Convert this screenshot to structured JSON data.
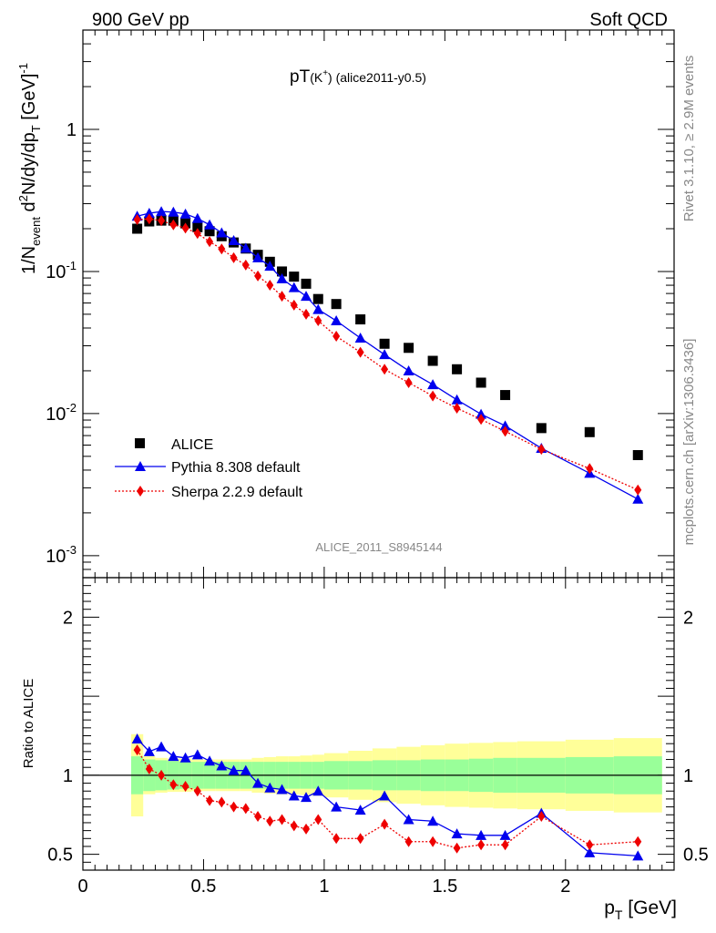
{
  "header": {
    "left": "900 GeV pp",
    "right": "Soft QCD"
  },
  "title": {
    "main": "pT",
    "paren": "(K",
    "sup": "+",
    "rest": ") (alice2011-y0.5)"
  },
  "side_text": {
    "rivet": "Rivet 3.1.10, ≥ 2.9M events",
    "mcplots": "mcplots.cern.ch [arXiv:1306.3436]"
  },
  "watermark": "ALICE_2011_S8945144",
  "colors": {
    "alice": "#000000",
    "pythia": "#0000ee",
    "sherpa": "#ee0000",
    "band_inner": "#99ff99",
    "band_outer": "#ffff99"
  },
  "chart_data": [
    {
      "type": "scatter",
      "panel": "main",
      "ylabel": {
        "a": "1/N",
        "a_sub": "event",
        "b": " d",
        "b_sup": "2",
        "c": "N/dy/dp",
        "c_sub": "T",
        "d": " [GeV]",
        "d_sup": "-1"
      },
      "yscale": "log",
      "ylim": [
        0.0007,
        5
      ],
      "xlim": [
        0,
        2.45
      ],
      "yticks": [
        {
          "v": 0.001,
          "base": "10",
          "exp": "-3"
        },
        {
          "v": 0.01,
          "base": "10",
          "exp": "-2"
        },
        {
          "v": 0.1,
          "base": "10",
          "exp": "-1"
        },
        {
          "v": 1,
          "base": "1",
          "exp": ""
        }
      ],
      "x": [
        0.225,
        0.275,
        0.325,
        0.375,
        0.425,
        0.475,
        0.525,
        0.575,
        0.625,
        0.675,
        0.725,
        0.775,
        0.825,
        0.875,
        0.925,
        0.975,
        1.05,
        1.15,
        1.25,
        1.35,
        1.45,
        1.55,
        1.65,
        1.75,
        1.9,
        2.1,
        2.3
      ],
      "series": [
        {
          "name": "ALICE",
          "marker": "square",
          "values": [
            0.2,
            0.225,
            0.228,
            0.228,
            0.218,
            0.205,
            0.192,
            0.177,
            0.16,
            0.145,
            0.131,
            0.117,
            0.1,
            0.092,
            0.082,
            0.064,
            0.059,
            0.046,
            0.031,
            0.029,
            0.0235,
            0.0205,
            0.0165,
            0.0135,
            0.0079,
            0.0074,
            0.0051
          ]
        },
        {
          "name": "Pythia 8.308 default",
          "marker": "triangle",
          "line": "solid",
          "values": [
            0.245,
            0.257,
            0.264,
            0.262,
            0.254,
            0.236,
            0.213,
            0.187,
            0.165,
            0.146,
            0.125,
            0.109,
            0.089,
            0.077,
            0.067,
            0.054,
            0.045,
            0.034,
            0.026,
            0.02,
            0.016,
            0.0125,
            0.0099,
            0.0082,
            0.0057,
            0.0038,
            0.0025
          ]
        },
        {
          "name": "Sherpa 2.2.9 default",
          "marker": "diamond",
          "line": "dotted",
          "values": [
            0.232,
            0.234,
            0.228,
            0.213,
            0.202,
            0.185,
            0.162,
            0.144,
            0.125,
            0.111,
            0.093,
            0.08,
            0.067,
            0.058,
            0.05,
            0.045,
            0.035,
            0.027,
            0.0205,
            0.0165,
            0.0133,
            0.0109,
            0.0091,
            0.0075,
            0.0056,
            0.0041,
            0.0029
          ]
        }
      ],
      "legend": {
        "position": "bottom-left"
      }
    },
    {
      "type": "line",
      "panel": "ratio",
      "xlabel": {
        "a": "p",
        "a_sub": "T",
        "b": " [GeV]"
      },
      "ylabel": "Ratio to ALICE",
      "ylim": [
        0.4,
        2.25
      ],
      "xlim": [
        0,
        2.45
      ],
      "xticks": [
        {
          "v": 0,
          "label": "0"
        },
        {
          "v": 0.5,
          "label": "0.5"
        },
        {
          "v": 1,
          "label": "1"
        },
        {
          "v": 1.5,
          "label": "1.5"
        },
        {
          "v": 2,
          "label": "2"
        }
      ],
      "yticks": [
        {
          "v": 0.5,
          "label": "0.5"
        },
        {
          "v": 1,
          "label": "1"
        },
        {
          "v": 2,
          "label": "2"
        }
      ],
      "reference": 1,
      "band_edges": [
        0.2,
        0.25,
        0.3,
        0.35,
        0.4,
        0.45,
        0.5,
        0.55,
        0.6,
        0.65,
        0.7,
        0.75,
        0.8,
        0.85,
        0.9,
        0.95,
        1.0,
        1.1,
        1.2,
        1.3,
        1.4,
        1.5,
        1.6,
        1.7,
        1.8,
        2.0,
        2.2,
        2.4
      ],
      "band_inner": [
        0.12,
        0.1,
        0.095,
        0.09,
        0.085,
        0.085,
        0.085,
        0.085,
        0.085,
        0.085,
        0.085,
        0.085,
        0.085,
        0.085,
        0.085,
        0.085,
        0.09,
        0.09,
        0.095,
        0.095,
        0.1,
        0.1,
        0.105,
        0.11,
        0.11,
        0.115,
        0.12
      ],
      "band_outer": [
        0.26,
        0.12,
        0.11,
        0.105,
        0.105,
        0.1,
        0.1,
        0.1,
        0.1,
        0.1,
        0.11,
        0.115,
        0.12,
        0.12,
        0.125,
        0.13,
        0.14,
        0.155,
        0.17,
        0.18,
        0.19,
        0.2,
        0.205,
        0.21,
        0.215,
        0.225,
        0.235
      ],
      "x": [
        0.225,
        0.275,
        0.325,
        0.375,
        0.425,
        0.475,
        0.525,
        0.575,
        0.625,
        0.675,
        0.725,
        0.775,
        0.825,
        0.875,
        0.925,
        0.975,
        1.05,
        1.15,
        1.25,
        1.35,
        1.45,
        1.55,
        1.65,
        1.75,
        1.9,
        2.1,
        2.3
      ],
      "series": [
        {
          "name": "Pythia 8.308 default",
          "marker": "triangle",
          "line": "solid",
          "values": [
            1.23,
            1.15,
            1.18,
            1.12,
            1.11,
            1.13,
            1.09,
            1.06,
            1.03,
            1.03,
            0.95,
            0.92,
            0.91,
            0.87,
            0.86,
            0.9,
            0.8,
            0.78,
            0.87,
            0.72,
            0.71,
            0.63,
            0.62,
            0.62,
            0.76,
            0.51,
            0.49
          ]
        },
        {
          "name": "Sherpa 2.2.9 default",
          "marker": "diamond",
          "line": "dotted",
          "values": [
            1.16,
            1.04,
            1.0,
            0.94,
            0.93,
            0.9,
            0.84,
            0.83,
            0.8,
            0.79,
            0.74,
            0.71,
            0.72,
            0.68,
            0.66,
            0.72,
            0.6,
            0.6,
            0.69,
            0.58,
            0.58,
            0.54,
            0.56,
            0.56,
            0.74,
            0.56,
            0.58
          ]
        }
      ]
    }
  ]
}
